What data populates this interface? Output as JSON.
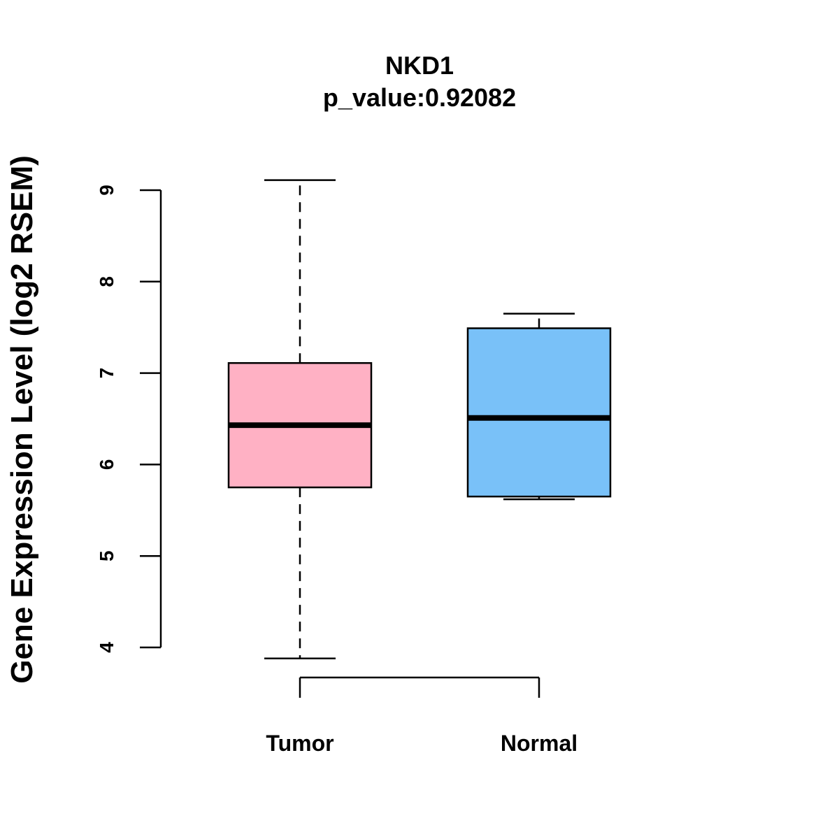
{
  "chart_data": {
    "type": "box",
    "title": "NKD1",
    "subtitle": "p_value:0.92082",
    "xlabel": "",
    "ylabel": "Gene Expression Level (log2 RSEM)",
    "ylim": [
      4,
      9
    ],
    "y_ticks": [
      4,
      5,
      6,
      7,
      8,
      9
    ],
    "grid": false,
    "categories": [
      "Tumor",
      "Normal"
    ],
    "series": [
      {
        "name": "Tumor",
        "whisker_low": 3.88,
        "q1": 5.75,
        "median": 6.43,
        "q3": 7.11,
        "whisker_high": 9.11,
        "color": "#FFB1C4"
      },
      {
        "name": "Normal",
        "whisker_low": 5.62,
        "q1": 5.65,
        "median": 6.51,
        "q3": 7.49,
        "whisker_high": 7.65,
        "color": "#79C1F8"
      }
    ]
  }
}
